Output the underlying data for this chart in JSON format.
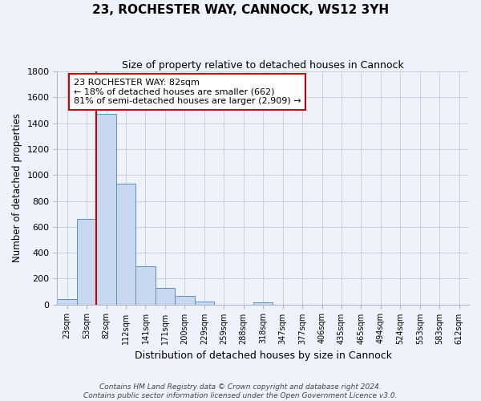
{
  "title": "23, ROCHESTER WAY, CANNOCK, WS12 3YH",
  "subtitle": "Size of property relative to detached houses in Cannock",
  "xlabel": "Distribution of detached houses by size in Cannock",
  "ylabel": "Number of detached properties",
  "bin_labels": [
    "23sqm",
    "53sqm",
    "82sqm",
    "112sqm",
    "141sqm",
    "171sqm",
    "200sqm",
    "229sqm",
    "259sqm",
    "288sqm",
    "318sqm",
    "347sqm",
    "377sqm",
    "406sqm",
    "435sqm",
    "465sqm",
    "494sqm",
    "524sqm",
    "553sqm",
    "583sqm",
    "612sqm"
  ],
  "bar_values": [
    40,
    660,
    1470,
    935,
    295,
    130,
    65,
    25,
    0,
    0,
    15,
    0,
    0,
    0,
    0,
    0,
    0,
    0,
    0,
    0,
    0
  ],
  "bar_color": "#c8d8f0",
  "bar_edge_color": "#6090c0",
  "highlight_bar_index": 2,
  "highlight_color": "#cc0000",
  "ylim": [
    0,
    1800
  ],
  "yticks": [
    0,
    200,
    400,
    600,
    800,
    1000,
    1200,
    1400,
    1600,
    1800
  ],
  "annotation_title": "23 ROCHESTER WAY: 82sqm",
  "annotation_line1": "← 18% of detached houses are smaller (662)",
  "annotation_line2": "81% of semi-detached houses are larger (2,909) →",
  "annotation_box_color": "#ffffff",
  "annotation_box_edge": "#cc0000",
  "footer_line1": "Contains HM Land Registry data © Crown copyright and database right 2024.",
  "footer_line2": "Contains public sector information licensed under the Open Government Licence v3.0.",
  "grid_color": "#c8d0e0",
  "background_color": "#eef2fa"
}
